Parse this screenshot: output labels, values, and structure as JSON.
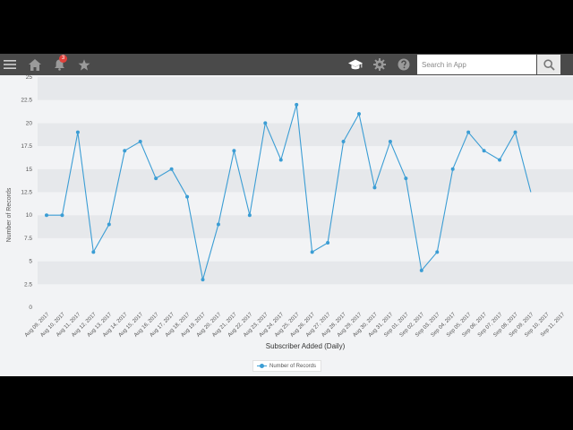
{
  "topbar": {
    "menu_icon": "hamburger-menu-icon",
    "home_icon": "home-icon",
    "notifications_icon": "bell-icon",
    "notification_count": "3",
    "favorites_icon": "star-icon",
    "learn_icon": "graduation-cap-icon",
    "settings_icon": "gear-icon",
    "help_icon": "question-mark-icon",
    "search_placeholder": "Search in App",
    "search_icon": "magnifier-icon"
  },
  "colors": {
    "topbar": "#4a4a4a",
    "series": "#3b9dd4",
    "badge": "#e0413b",
    "band_dark": "#e6e8eb",
    "band_light": "#f2f3f5"
  },
  "chart_data": {
    "type": "line",
    "xlabel": "Subscriber Added (Daily)",
    "ylabel": "Number of Records",
    "ylim": [
      0,
      25
    ],
    "yticks": [
      "0",
      "2.5",
      "5",
      "7.5",
      "10",
      "12.5",
      "15",
      "17.5",
      "20",
      "22.5",
      "25"
    ],
    "categories": [
      "Aug 09, 2017",
      "Aug 10, 2017",
      "Aug 11, 2017",
      "Aug 12, 2017",
      "Aug 13, 2017",
      "Aug 14, 2017",
      "Aug 15, 2017",
      "Aug 16, 2017",
      "Aug 17, 2017",
      "Aug 18, 2017",
      "Aug 19, 2017",
      "Aug 20, 2017",
      "Aug 21, 2017",
      "Aug 22, 2017",
      "Aug 23, 2017",
      "Aug 24, 2017",
      "Aug 25, 2017",
      "Aug 26, 2017",
      "Aug 27, 2017",
      "Aug 28, 2017",
      "Aug 29, 2017",
      "Aug 30, 2017",
      "Aug 31, 2017",
      "Sep 01, 2017",
      "Sep 02, 2017",
      "Sep 03, 2017",
      "Sep 04, 2017",
      "Sep 05, 2017",
      "Sep 06, 2017",
      "Sep 07, 2017",
      "Sep 08, 2017",
      "Sep 09, 2017",
      "Sep 10, 2017",
      "Sep 11, 2017"
    ],
    "series": [
      {
        "name": "Number of Records",
        "values": [
          10,
          10,
          19,
          6,
          9,
          17,
          18,
          14,
          15,
          12,
          3,
          9,
          17,
          10,
          20,
          16,
          22,
          6,
          7,
          18,
          21,
          13,
          18,
          14,
          4,
          6,
          15,
          19,
          17,
          16,
          19,
          12.5,
          null,
          null
        ]
      }
    ],
    "legend": "bottom-center",
    "grid": "alternating horizontal bands"
  }
}
